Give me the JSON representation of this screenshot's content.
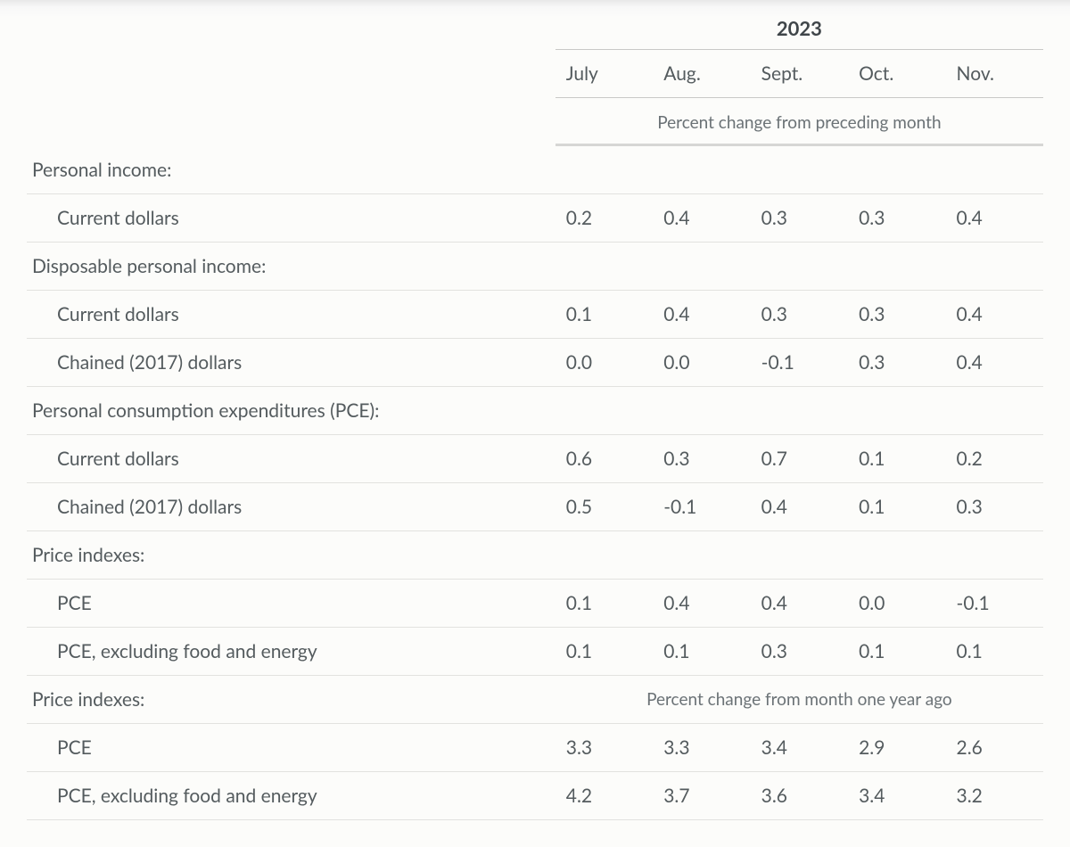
{
  "table": {
    "type": "table",
    "background_color": "#fcfcfa",
    "text_color": "#545b5e",
    "border_color": "#e2e2df",
    "header_border_color": "#c9c9c7",
    "subheader_border_color": "#d6d6d4",
    "font_size_pt": 16,
    "year": "2023",
    "months": [
      "July",
      "Aug.",
      "Sept.",
      "Oct.",
      "Nov."
    ],
    "subheader1": "Percent change from preceding month",
    "subheader2": "Percent change from month one year ago",
    "columns": [
      "label",
      "July",
      "Aug.",
      "Sept.",
      "Oct.",
      "Nov."
    ],
    "rows": [
      {
        "kind": "section",
        "label": "Personal income:"
      },
      {
        "kind": "data",
        "label": "Current dollars",
        "values": [
          "0.2",
          "0.4",
          "0.3",
          "0.3",
          "0.4"
        ]
      },
      {
        "kind": "section",
        "label": "Disposable personal income:"
      },
      {
        "kind": "data",
        "label": "Current dollars",
        "values": [
          "0.1",
          "0.4",
          "0.3",
          "0.3",
          "0.4"
        ]
      },
      {
        "kind": "data",
        "label": "Chained (2017) dollars",
        "values": [
          "0.0",
          "0.0",
          "-0.1",
          "0.3",
          "0.4"
        ]
      },
      {
        "kind": "section",
        "label": "Personal consumption expenditures (PCE):"
      },
      {
        "kind": "data",
        "label": "Current dollars",
        "values": [
          "0.6",
          "0.3",
          "0.7",
          "0.1",
          "0.2"
        ]
      },
      {
        "kind": "data",
        "label": "Chained (2017) dollars",
        "values": [
          "0.5",
          "-0.1",
          "0.4",
          "0.1",
          "0.3"
        ]
      },
      {
        "kind": "section",
        "label": "Price indexes:"
      },
      {
        "kind": "data",
        "label": "PCE",
        "values": [
          "0.1",
          "0.4",
          "0.4",
          "0.0",
          "-0.1"
        ]
      },
      {
        "kind": "data",
        "label": "PCE, excluding food and energy",
        "values": [
          "0.1",
          "0.1",
          "0.3",
          "0.1",
          "0.1"
        ]
      },
      {
        "kind": "section_with_sub",
        "label": "Price indexes:",
        "sub": "subheader2"
      },
      {
        "kind": "data",
        "label": "PCE",
        "values": [
          "3.3",
          "3.3",
          "3.4",
          "2.9",
          "2.6"
        ]
      },
      {
        "kind": "data",
        "label": "PCE, excluding food and energy",
        "values": [
          "4.2",
          "3.7",
          "3.6",
          "3.4",
          "3.2"
        ]
      }
    ]
  }
}
